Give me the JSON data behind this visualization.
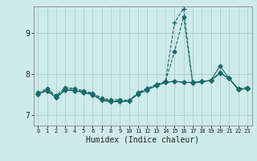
{
  "title": "",
  "xlabel": "Humidex (Indice chaleur)",
  "bg_color": "#ceeaea",
  "line_color": "#1a6b6b",
  "grid_color": "#aac8c8",
  "xlim": [
    -0.5,
    23.5
  ],
  "ylim": [
    6.75,
    9.65
  ],
  "yticks": [
    7,
    8,
    9
  ],
  "xtick_labels": [
    "0",
    "1",
    "2",
    "3",
    "4",
    "5",
    "6",
    "7",
    "8",
    "9",
    "10",
    "11",
    "12",
    "13",
    "14",
    "15",
    "16",
    "17",
    "18",
    "19",
    "20",
    "21",
    "22",
    "23"
  ],
  "series": [
    {
      "x": [
        0,
        1,
        2,
        3,
        4,
        5,
        6,
        7,
        8,
        9,
        10,
        11,
        12,
        13,
        14,
        15,
        16,
        17,
        18,
        19,
        20,
        21,
        22,
        23
      ],
      "y": [
        7.55,
        7.65,
        7.48,
        7.68,
        7.65,
        7.6,
        7.54,
        7.42,
        7.38,
        7.38,
        7.36,
        7.55,
        7.65,
        7.75,
        7.82,
        8.55,
        9.4,
        7.78,
        7.82,
        7.85,
        8.04,
        7.9,
        7.65,
        7.68
      ],
      "linestyle": "--",
      "marker": "D",
      "markersize": 2.5,
      "lw": 0.8
    },
    {
      "x": [
        0,
        1,
        2,
        3,
        4,
        5,
        6,
        7,
        8,
        9,
        10,
        11,
        12,
        13,
        14,
        15,
        16,
        17,
        18,
        19,
        20,
        21,
        22,
        23
      ],
      "y": [
        7.52,
        7.62,
        7.45,
        7.65,
        7.62,
        7.58,
        7.52,
        7.4,
        7.35,
        7.35,
        7.35,
        7.55,
        7.65,
        7.75,
        7.82,
        9.25,
        9.6,
        7.78,
        7.82,
        7.85,
        8.02,
        7.9,
        7.63,
        7.65
      ],
      "linestyle": "--",
      "marker": "+",
      "markersize": 4,
      "lw": 0.8
    },
    {
      "x": [
        0,
        1,
        2,
        3,
        4,
        5,
        6,
        7,
        8,
        9,
        10,
        11,
        12,
        13,
        14,
        15,
        16,
        17,
        18,
        19,
        20,
        21,
        22,
        23
      ],
      "y": [
        7.52,
        7.6,
        7.43,
        7.62,
        7.6,
        7.56,
        7.5,
        7.37,
        7.33,
        7.33,
        7.35,
        7.52,
        7.62,
        7.72,
        7.8,
        7.83,
        7.8,
        7.8,
        7.82,
        7.85,
        8.03,
        7.9,
        7.63,
        7.65
      ],
      "linestyle": "-",
      "marker": "D",
      "markersize": 2.5,
      "lw": 0.8
    },
    {
      "x": [
        0,
        1,
        2,
        3,
        4,
        5,
        6,
        7,
        8,
        9,
        10,
        11,
        12,
        13,
        14,
        15,
        16,
        17,
        18,
        19,
        20,
        21,
        22,
        23
      ],
      "y": [
        7.52,
        7.6,
        7.43,
        7.62,
        7.6,
        7.56,
        7.5,
        7.37,
        7.33,
        7.33,
        7.35,
        7.52,
        7.62,
        7.72,
        7.8,
        7.83,
        7.8,
        7.8,
        7.82,
        7.85,
        8.2,
        7.9,
        7.63,
        7.65
      ],
      "linestyle": "-",
      "marker": "D",
      "markersize": 2.5,
      "lw": 0.8
    }
  ]
}
